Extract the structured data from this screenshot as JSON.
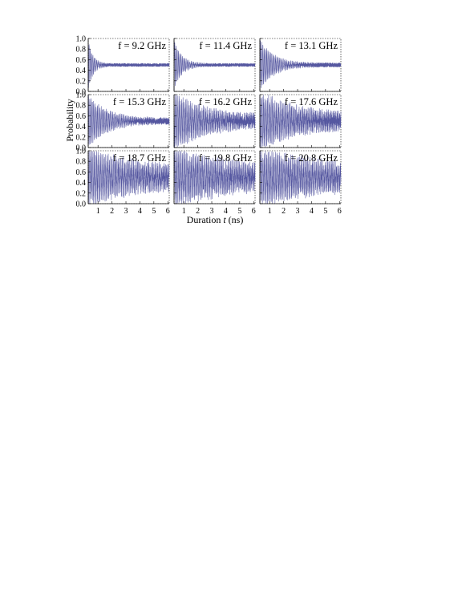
{
  "chart_data": {
    "type": "line",
    "layout": "3x3 grid of subplots with shared axes",
    "xlabel_prefix": "Duration ",
    "xlabel_var": "t",
    "xlabel_suffix": " (ns)",
    "ylabel": "Probability",
    "xlim": [
      0.3,
      6.1
    ],
    "ylim": [
      0.0,
      1.0
    ],
    "xticks": [
      1,
      2,
      3,
      4,
      5,
      6
    ],
    "yticks": [
      0.0,
      0.2,
      0.4,
      0.6,
      0.8,
      1.0
    ],
    "ytick_labels": [
      "0.0",
      "0.2",
      "0.4",
      "0.6",
      "0.8",
      "1.0"
    ],
    "line_color": "#5557a0",
    "grid": false,
    "panels": [
      {
        "label": "f = 9.2 GHz",
        "freq_ghz": 9.2,
        "mean": 0.5,
        "initial_amplitude": 0.45,
        "damping_time_ns": 0.35,
        "residual_noise": 0.03
      },
      {
        "label": "f = 11.4 GHz",
        "freq_ghz": 11.4,
        "mean": 0.5,
        "initial_amplitude": 0.45,
        "damping_time_ns": 0.55,
        "residual_noise": 0.03
      },
      {
        "label": "f = 13.1 GHz",
        "freq_ghz": 13.1,
        "mean": 0.5,
        "initial_amplitude": 0.45,
        "damping_time_ns": 1.0,
        "residual_noise": 0.04
      },
      {
        "label": "f = 15.3 GHz",
        "freq_ghz": 15.3,
        "mean": 0.5,
        "initial_amplitude": 0.45,
        "damping_time_ns": 1.4,
        "residual_noise": 0.06
      },
      {
        "label": "f = 16.2 GHz",
        "freq_ghz": 16.2,
        "mean": 0.5,
        "initial_amplitude": 0.45,
        "damping_time_ns": 2.5,
        "residual_noise": 0.12
      },
      {
        "label": "f = 17.6 GHz",
        "freq_ghz": 17.6,
        "mean": 0.5,
        "initial_amplitude": 0.45,
        "damping_time_ns": 3.0,
        "residual_noise": 0.14
      },
      {
        "label": "f = 18.7 GHz",
        "freq_ghz": 18.7,
        "mean": 0.5,
        "initial_amplitude": 0.42,
        "damping_time_ns": 5.0,
        "residual_noise": 0.15
      },
      {
        "label": "f = 19.8 GHz",
        "freq_ghz": 19.8,
        "mean": 0.5,
        "initial_amplitude": 0.42,
        "damping_time_ns": 5.5,
        "residual_noise": 0.16
      },
      {
        "label": "f = 20.8 GHz",
        "freq_ghz": 20.8,
        "mean": 0.5,
        "initial_amplitude": 0.42,
        "damping_time_ns": 6.0,
        "residual_noise": 0.16
      }
    ]
  }
}
